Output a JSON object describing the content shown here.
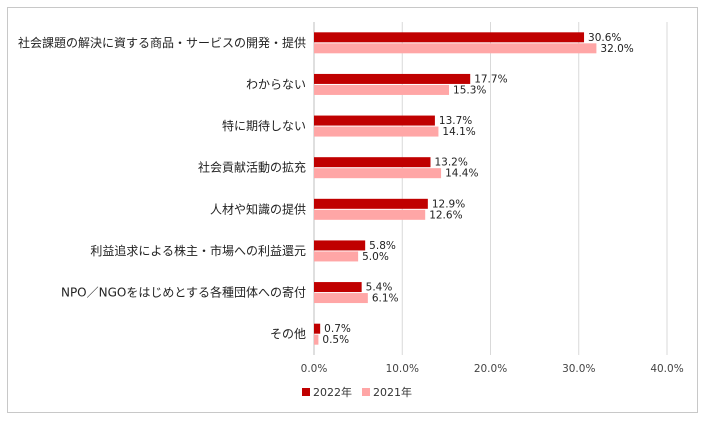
{
  "chart_data": {
    "type": "bar",
    "orientation": "horizontal",
    "title": "",
    "xlabel": "",
    "ylabel": "",
    "xlim": [
      0,
      40
    ],
    "tick_labels": [
      "0.0%",
      "10.0%",
      "20.0%",
      "30.0%",
      "40.0%"
    ],
    "grid": true,
    "legend_position": "bottom",
    "categories": [
      "社会課題の解決に資する商品・サービスの開発・提供",
      "わからない",
      "特に期待しない",
      "社会貢献活動の拡充",
      "人材や知識の提供",
      "利益追求による株主・市場への利益還元",
      "NPO／NGOをはじめとする各種団体への寄付",
      "その他"
    ],
    "series": [
      {
        "name": "2022年",
        "color": "#c00000",
        "values": [
          30.6,
          17.7,
          13.7,
          13.2,
          12.9,
          5.8,
          5.4,
          0.7
        ],
        "labels": [
          "30.6%",
          "17.7%",
          "13.7%",
          "13.2%",
          "12.9%",
          "5.8%",
          "5.4%",
          "0.7%"
        ]
      },
      {
        "name": "2021年",
        "color": "#ffa6a6",
        "values": [
          32.0,
          15.3,
          14.1,
          14.4,
          12.6,
          5.0,
          6.1,
          0.5
        ],
        "labels": [
          "32.0%",
          "15.3%",
          "14.1%",
          "14.4%",
          "12.6%",
          "5.0%",
          "6.1%",
          "0.5%"
        ]
      }
    ]
  }
}
